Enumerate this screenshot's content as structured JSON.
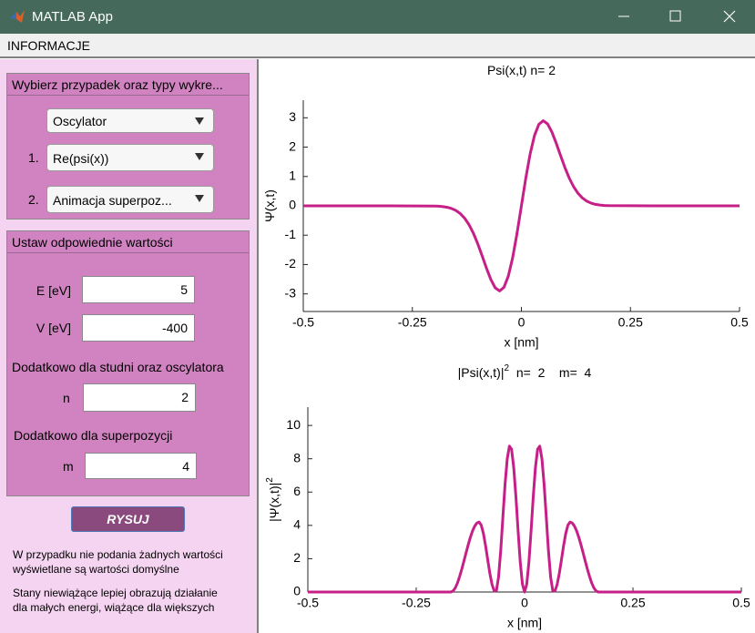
{
  "window_title": "MATLAB App",
  "menu": "INFORMACJE",
  "panel_select": {
    "title": "Wybierz przypadek oraz typy wykre...",
    "case": "Oscylator",
    "plots": [
      {
        "label": "1.",
        "value": "Re(psi(x))"
      },
      {
        "label": "2.",
        "value": "Animacja superpoz..."
      }
    ]
  },
  "panel_values": {
    "title": "Ustaw odpowiednie wartości",
    "fields": [
      {
        "label": "E [eV]",
        "value": 5
      },
      {
        "label": "V [eV]",
        "value": -400
      }
    ],
    "note_n": "Dodatkowo dla studni oraz oscylatora",
    "field_n": {
      "label": "n",
      "value": 2
    },
    "note_m": "Dodatkowo dla superpozycji",
    "field_m": {
      "label": "m",
      "value": 4
    }
  },
  "button": "RYSUJ",
  "info": [
    "W przypadku nie podania żadnych wartości",
    "wyświetlane są wartości domyślne",
    "Stany niewiążące lepiej obrazują działanie",
    "dla małych energi, wiążące dla większych"
  ],
  "chart_data": [
    {
      "type": "line",
      "title": "Psi(x,t) n= 2",
      "x_label": "x [nm]",
      "y_label": "Ψ(x,t)",
      "color": "#c61f88",
      "xlim": [
        -0.5,
        0.5
      ],
      "xticks": [
        -0.5,
        -0.25,
        0,
        0.25,
        0.5
      ],
      "ylim": [
        -3.6,
        3.6
      ],
      "yticks": [
        -3,
        -2,
        -1,
        0,
        1,
        2,
        3
      ],
      "x": [
        -0.5,
        -0.3,
        -0.2,
        -0.19,
        -0.18,
        -0.17,
        -0.16,
        -0.15,
        -0.14,
        -0.13,
        -0.12,
        -0.11,
        -0.1,
        -0.09,
        -0.08,
        -0.07,
        -0.06,
        -0.05,
        -0.04,
        -0.03,
        -0.02,
        -0.01,
        0,
        0.01,
        0.02,
        0.03,
        0.04,
        0.05,
        0.06,
        0.07,
        0.08,
        0.09,
        0.1,
        0.11,
        0.12,
        0.13,
        0.14,
        0.15,
        0.16,
        0.17,
        0.18,
        0.19,
        0.2,
        0.3,
        0.5
      ],
      "values": [
        0,
        0,
        -0.006,
        -0.013,
        -0.026,
        -0.05,
        -0.091,
        -0.159,
        -0.266,
        -0.423,
        -0.644,
        -0.935,
        -1.294,
        -1.704,
        -2.127,
        -2.512,
        -2.793,
        -2.9,
        -2.777,
        -2.396,
        -1.765,
        -0.937,
        0,
        0.937,
        1.765,
        2.396,
        2.777,
        2.9,
        2.793,
        2.512,
        2.127,
        1.704,
        1.294,
        0.935,
        0.644,
        0.423,
        0.266,
        0.159,
        0.091,
        0.05,
        0.026,
        0.013,
        0.006,
        0,
        0
      ]
    },
    {
      "type": "line",
      "title": "|Psi(x,t)|",
      "title_sup": "2",
      "title_suffix": "  n=  2    m=  4",
      "x_label": "x [nm]",
      "y_label": "|Ψ(x,t)|",
      "y_label_sup": "2",
      "color": "#c61f88",
      "xlim": [
        -0.5,
        0.5
      ],
      "xticks": [
        -0.5,
        -0.25,
        0,
        0.25,
        0.5
      ],
      "ylim": [
        0,
        11.1
      ],
      "yticks": [
        0,
        2,
        4,
        6,
        8,
        10
      ],
      "x": [
        -0.5,
        -0.17,
        -0.165,
        -0.16,
        -0.155,
        -0.15,
        -0.145,
        -0.14,
        -0.135,
        -0.13,
        -0.125,
        -0.12,
        -0.115,
        -0.11,
        -0.105,
        -0.1,
        -0.095,
        -0.09,
        -0.085,
        -0.08,
        -0.075,
        -0.07,
        -0.065,
        -0.06,
        -0.055,
        -0.05,
        -0.045,
        -0.04,
        -0.035,
        -0.03,
        -0.025,
        -0.02,
        -0.015,
        -0.01,
        -0.005,
        0,
        0.005,
        0.01,
        0.015,
        0.02,
        0.025,
        0.03,
        0.035,
        0.04,
        0.045,
        0.05,
        0.055,
        0.06,
        0.065,
        0.07,
        0.075,
        0.08,
        0.085,
        0.09,
        0.095,
        0.1,
        0.105,
        0.11,
        0.115,
        0.12,
        0.125,
        0.13,
        0.135,
        0.14,
        0.145,
        0.15,
        0.155,
        0.16,
        0.165,
        0.17,
        0.5
      ],
      "values": [
        0,
        0,
        0.06,
        0.24,
        0.53,
        0.92,
        1.36,
        1.85,
        2.35,
        2.84,
        3.29,
        3.67,
        3.96,
        4.14,
        4.2,
        4.02,
        3.52,
        2.78,
        1.93,
        1.1,
        0.44,
        0.06,
        0.08,
        0.91,
        2.5,
        4.51,
        6.48,
        8.0,
        8.76,
        8.57,
        7.47,
        5.72,
        3.68,
        1.8,
        0.47,
        0,
        0.47,
        1.8,
        3.68,
        5.72,
        7.47,
        8.57,
        8.76,
        8.0,
        6.48,
        4.51,
        2.5,
        0.91,
        0.08,
        0.06,
        0.44,
        1.1,
        1.93,
        2.78,
        3.52,
        4.02,
        4.2,
        4.14,
        3.96,
        3.67,
        3.29,
        2.84,
        2.35,
        1.85,
        1.36,
        0.92,
        0.53,
        0.24,
        0.06,
        0,
        0
      ]
    }
  ]
}
